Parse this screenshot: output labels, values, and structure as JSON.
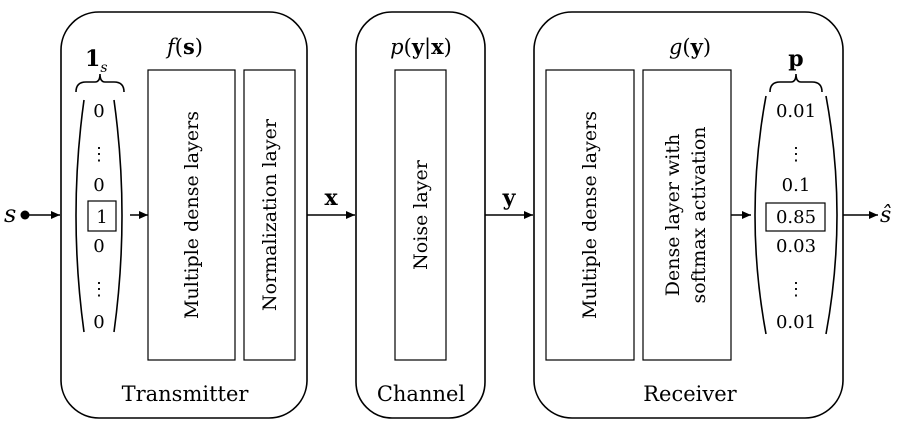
{
  "transmitter": {
    "function_label": "f(s)",
    "one_hot_label": "1_s",
    "vector": [
      "0",
      "⋮",
      "0",
      "1",
      "0",
      "⋮",
      "0"
    ],
    "layers": [
      "Multiple dense layers",
      "Normalization layer"
    ],
    "block_label": "Transmitter"
  },
  "channel": {
    "function_label": "p(y|x)",
    "layer": "Noise layer",
    "block_label": "Channel"
  },
  "receiver": {
    "function_label": "g(y)",
    "prob_label": "p",
    "layers": [
      "Multiple dense layers",
      "Dense layer with",
      "softmax activation"
    ],
    "vector": [
      "0.01",
      "⋮",
      "0.1",
      "0.85",
      "0.03",
      "⋮",
      "0.01"
    ],
    "block_label": "Receiver"
  },
  "signals": {
    "input": "s",
    "x": "x",
    "y": "y",
    "output": "ŝ"
  }
}
